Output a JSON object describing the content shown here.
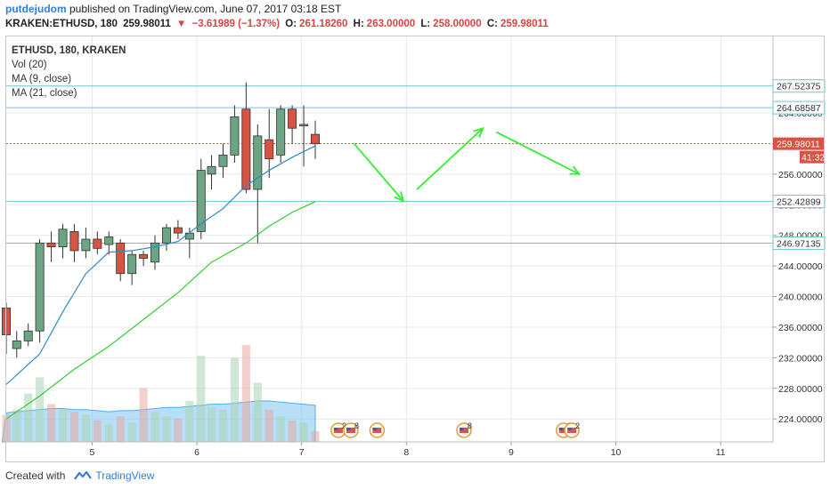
{
  "header": {
    "author": "putdejudom",
    "published_text": "published on TradingView.com, June 07, 2017 03:18 EST",
    "symbol_line": "KRAKEN:ETHUSD, 180",
    "last_price": "259.98011",
    "change_arrow": "▼",
    "change": "−3.61989 (−1.37%)",
    "open_label": "O:",
    "open": "261.18260",
    "high_label": "H:",
    "high": "263.00000",
    "low_label": "L:",
    "low": "258.00000",
    "close_label": "C:",
    "close": "259.98011"
  },
  "legend": {
    "symbol": "ETHUSD, 180, KRAKEN",
    "vol": "Vol (20)",
    "ma9": "MA (9, close)",
    "ma21": "MA (21, close)"
  },
  "footer": {
    "created_with": "Created with",
    "brand": "TradingView"
  },
  "colors": {
    "up": "#6ba583",
    "down": "#d75442",
    "ma9": "#2d8bc4",
    "ma21": "#33cc33",
    "hline": "#6cc5cf",
    "price_line": "#d75442",
    "arrows": "#33ee33",
    "grid": "#e8e8e8",
    "axis_text": "#333333",
    "price_tag": "#d75442"
  },
  "chart_data": {
    "type": "candlestick",
    "y_axis": {
      "ticks": [
        "224.00000",
        "228.00000",
        "232.00000",
        "236.00000",
        "240.00000",
        "244.00000",
        "248.00000",
        "252.00000",
        "256.00000",
        "260.00000",
        "264.00000"
      ],
      "range": [
        221,
        274
      ]
    },
    "x_axis": {
      "ticks": [
        "5",
        "6",
        "7",
        "8",
        "9",
        "10",
        "11"
      ],
      "range": [
        4.18,
        11.5
      ]
    },
    "price_labels": {
      "level_1": "267.52375",
      "level_2": "264.68587",
      "last": "259.98011",
      "countdown": "41:32",
      "level_3": "252.42899",
      "level_4": "246.97135"
    },
    "horizontal_lines": [
      267.52375,
      264.68587,
      252.42899,
      246.97135
    ],
    "last_price": 259.98011,
    "candles": [
      {
        "t": 4.18,
        "o": 238.5,
        "h": 239.2,
        "l": 232.5,
        "c": 235.0,
        "v": 0.25
      },
      {
        "t": 4.28,
        "o": 233.2,
        "h": 235.5,
        "l": 232.0,
        "c": 234.2,
        "v": 0.3
      },
      {
        "t": 4.39,
        "o": 234.2,
        "h": 236.5,
        "l": 233.5,
        "c": 235.5,
        "v": 0.45
      },
      {
        "t": 4.5,
        "o": 235.5,
        "h": 247.5,
        "l": 234.0,
        "c": 247.0,
        "v": 0.6
      },
      {
        "t": 4.61,
        "o": 247.0,
        "h": 248.5,
        "l": 244.5,
        "c": 246.5,
        "v": 0.35
      },
      {
        "t": 4.72,
        "o": 246.5,
        "h": 249.5,
        "l": 245.0,
        "c": 248.8,
        "v": 0.3
      },
      {
        "t": 4.83,
        "o": 248.5,
        "h": 249.5,
        "l": 244.5,
        "c": 246.0,
        "v": 0.28
      },
      {
        "t": 4.94,
        "o": 246.0,
        "h": 249.0,
        "l": 245.0,
        "c": 247.5,
        "v": 0.25
      },
      {
        "t": 5.05,
        "o": 247.5,
        "h": 248.5,
        "l": 245.5,
        "c": 246.3,
        "v": 0.2
      },
      {
        "t": 5.16,
        "o": 246.8,
        "h": 248.5,
        "l": 245.5,
        "c": 247.8,
        "v": 0.16
      },
      {
        "t": 5.27,
        "o": 247.0,
        "h": 247.5,
        "l": 242.0,
        "c": 243.0,
        "v": 0.24
      },
      {
        "t": 5.38,
        "o": 243.0,
        "h": 246.0,
        "l": 241.5,
        "c": 245.5,
        "v": 0.18
      },
      {
        "t": 5.49,
        "o": 245.5,
        "h": 246.0,
        "l": 244.0,
        "c": 245.0,
        "v": 0.5
      },
      {
        "t": 5.6,
        "o": 244.5,
        "h": 248.0,
        "l": 243.5,
        "c": 247.0,
        "v": 0.28
      },
      {
        "t": 5.71,
        "o": 247.0,
        "h": 249.5,
        "l": 246.0,
        "c": 249.0,
        "v": 0.24
      },
      {
        "t": 5.82,
        "o": 249.0,
        "h": 250.0,
        "l": 247.5,
        "c": 248.3,
        "v": 0.22
      },
      {
        "t": 5.93,
        "o": 247.5,
        "h": 249.0,
        "l": 245.0,
        "c": 248.3,
        "v": 0.38
      },
      {
        "t": 6.04,
        "o": 248.5,
        "h": 258.0,
        "l": 247.5,
        "c": 256.5,
        "v": 0.8
      },
      {
        "t": 6.14,
        "o": 256.0,
        "h": 258.5,
        "l": 254.0,
        "c": 257.0,
        "v": 0.32
      },
      {
        "t": 6.25,
        "o": 257.0,
        "h": 260.0,
        "l": 255.5,
        "c": 258.5,
        "v": 0.3
      },
      {
        "t": 6.36,
        "o": 258.5,
        "h": 265.0,
        "l": 257.5,
        "c": 263.5,
        "v": 0.78
      },
      {
        "t": 6.47,
        "o": 264.5,
        "h": 268.0,
        "l": 253.5,
        "c": 254.0,
        "v": 0.9
      },
      {
        "t": 6.58,
        "o": 254.0,
        "h": 262.5,
        "l": 247.0,
        "c": 261.0,
        "v": 0.55
      },
      {
        "t": 6.69,
        "o": 260.5,
        "h": 264.5,
        "l": 255.5,
        "c": 258.0,
        "v": 0.3
      },
      {
        "t": 6.8,
        "o": 258.5,
        "h": 265.0,
        "l": 257.5,
        "c": 264.5,
        "v": 0.24
      },
      {
        "t": 6.91,
        "o": 264.5,
        "h": 265.0,
        "l": 260.0,
        "c": 262.0,
        "v": 0.2
      },
      {
        "t": 7.02,
        "o": 262.3,
        "h": 265.0,
        "l": 257.0,
        "c": 262.5,
        "v": 0.18
      },
      {
        "t": 7.13,
        "o": 261.2,
        "h": 263.0,
        "l": 258.0,
        "c": 259.98,
        "v": 0.1
      }
    ],
    "volume_bars": [
      0.25,
      0.3,
      0.45,
      0.6,
      0.35,
      0.3,
      0.28,
      0.25,
      0.2,
      0.16,
      0.24,
      0.18,
      0.5,
      0.28,
      0.24,
      0.22,
      0.38,
      0.8,
      0.32,
      0.3,
      0.78,
      0.9,
      0.55,
      0.3,
      0.24,
      0.2,
      0.18,
      0.1
    ],
    "volume_ma": [
      0.27,
      0.28,
      0.29,
      0.3,
      0.31,
      0.31,
      0.3,
      0.3,
      0.29,
      0.28,
      0.29,
      0.29,
      0.3,
      0.31,
      0.32,
      0.32,
      0.33,
      0.34,
      0.35,
      0.35,
      0.36,
      0.37,
      0.38,
      0.38,
      0.37,
      0.36,
      0.35,
      0.34
    ],
    "ma9": [
      {
        "t": 4.18,
        "v": 228.5
      },
      {
        "t": 4.5,
        "v": 232.5
      },
      {
        "t": 4.72,
        "v": 238.0
      },
      {
        "t": 4.94,
        "v": 243.0
      },
      {
        "t": 5.16,
        "v": 245.8
      },
      {
        "t": 5.38,
        "v": 246.0
      },
      {
        "t": 5.6,
        "v": 246.5
      },
      {
        "t": 5.82,
        "v": 247.2
      },
      {
        "t": 6.04,
        "v": 249.5
      },
      {
        "t": 6.25,
        "v": 251.5
      },
      {
        "t": 6.47,
        "v": 254.5
      },
      {
        "t": 6.69,
        "v": 256.5
      },
      {
        "t": 6.91,
        "v": 258.2
      },
      {
        "t": 7.13,
        "v": 259.7
      }
    ],
    "ma21": [
      {
        "t": 4.18,
        "v": 224.0
      },
      {
        "t": 4.5,
        "v": 227.0
      },
      {
        "t": 4.83,
        "v": 230.5
      },
      {
        "t": 5.16,
        "v": 233.5
      },
      {
        "t": 5.49,
        "v": 237.0
      },
      {
        "t": 5.82,
        "v": 240.5
      },
      {
        "t": 6.14,
        "v": 244.5
      },
      {
        "t": 6.47,
        "v": 247.0
      },
      {
        "t": 6.69,
        "v": 249.2
      },
      {
        "t": 6.91,
        "v": 251.0
      },
      {
        "t": 7.13,
        "v": 252.4
      }
    ],
    "projection_arrows": [
      {
        "from": [
          7.5,
          260.0
        ],
        "to": [
          7.97,
          252.5
        ]
      },
      {
        "from": [
          8.1,
          254.0
        ],
        "to": [
          8.73,
          262.0
        ]
      },
      {
        "from": [
          8.86,
          261.5
        ],
        "to": [
          9.65,
          256.0
        ]
      }
    ],
    "event_markers": [
      {
        "t": 7.35,
        "label": "2"
      },
      {
        "t": 7.47,
        "label": "8"
      },
      {
        "t": 7.72,
        "label": ""
      },
      {
        "t": 8.55,
        "label": "8"
      },
      {
        "t": 9.5,
        "label": "2"
      },
      {
        "t": 9.58,
        "label": "2"
      }
    ]
  }
}
